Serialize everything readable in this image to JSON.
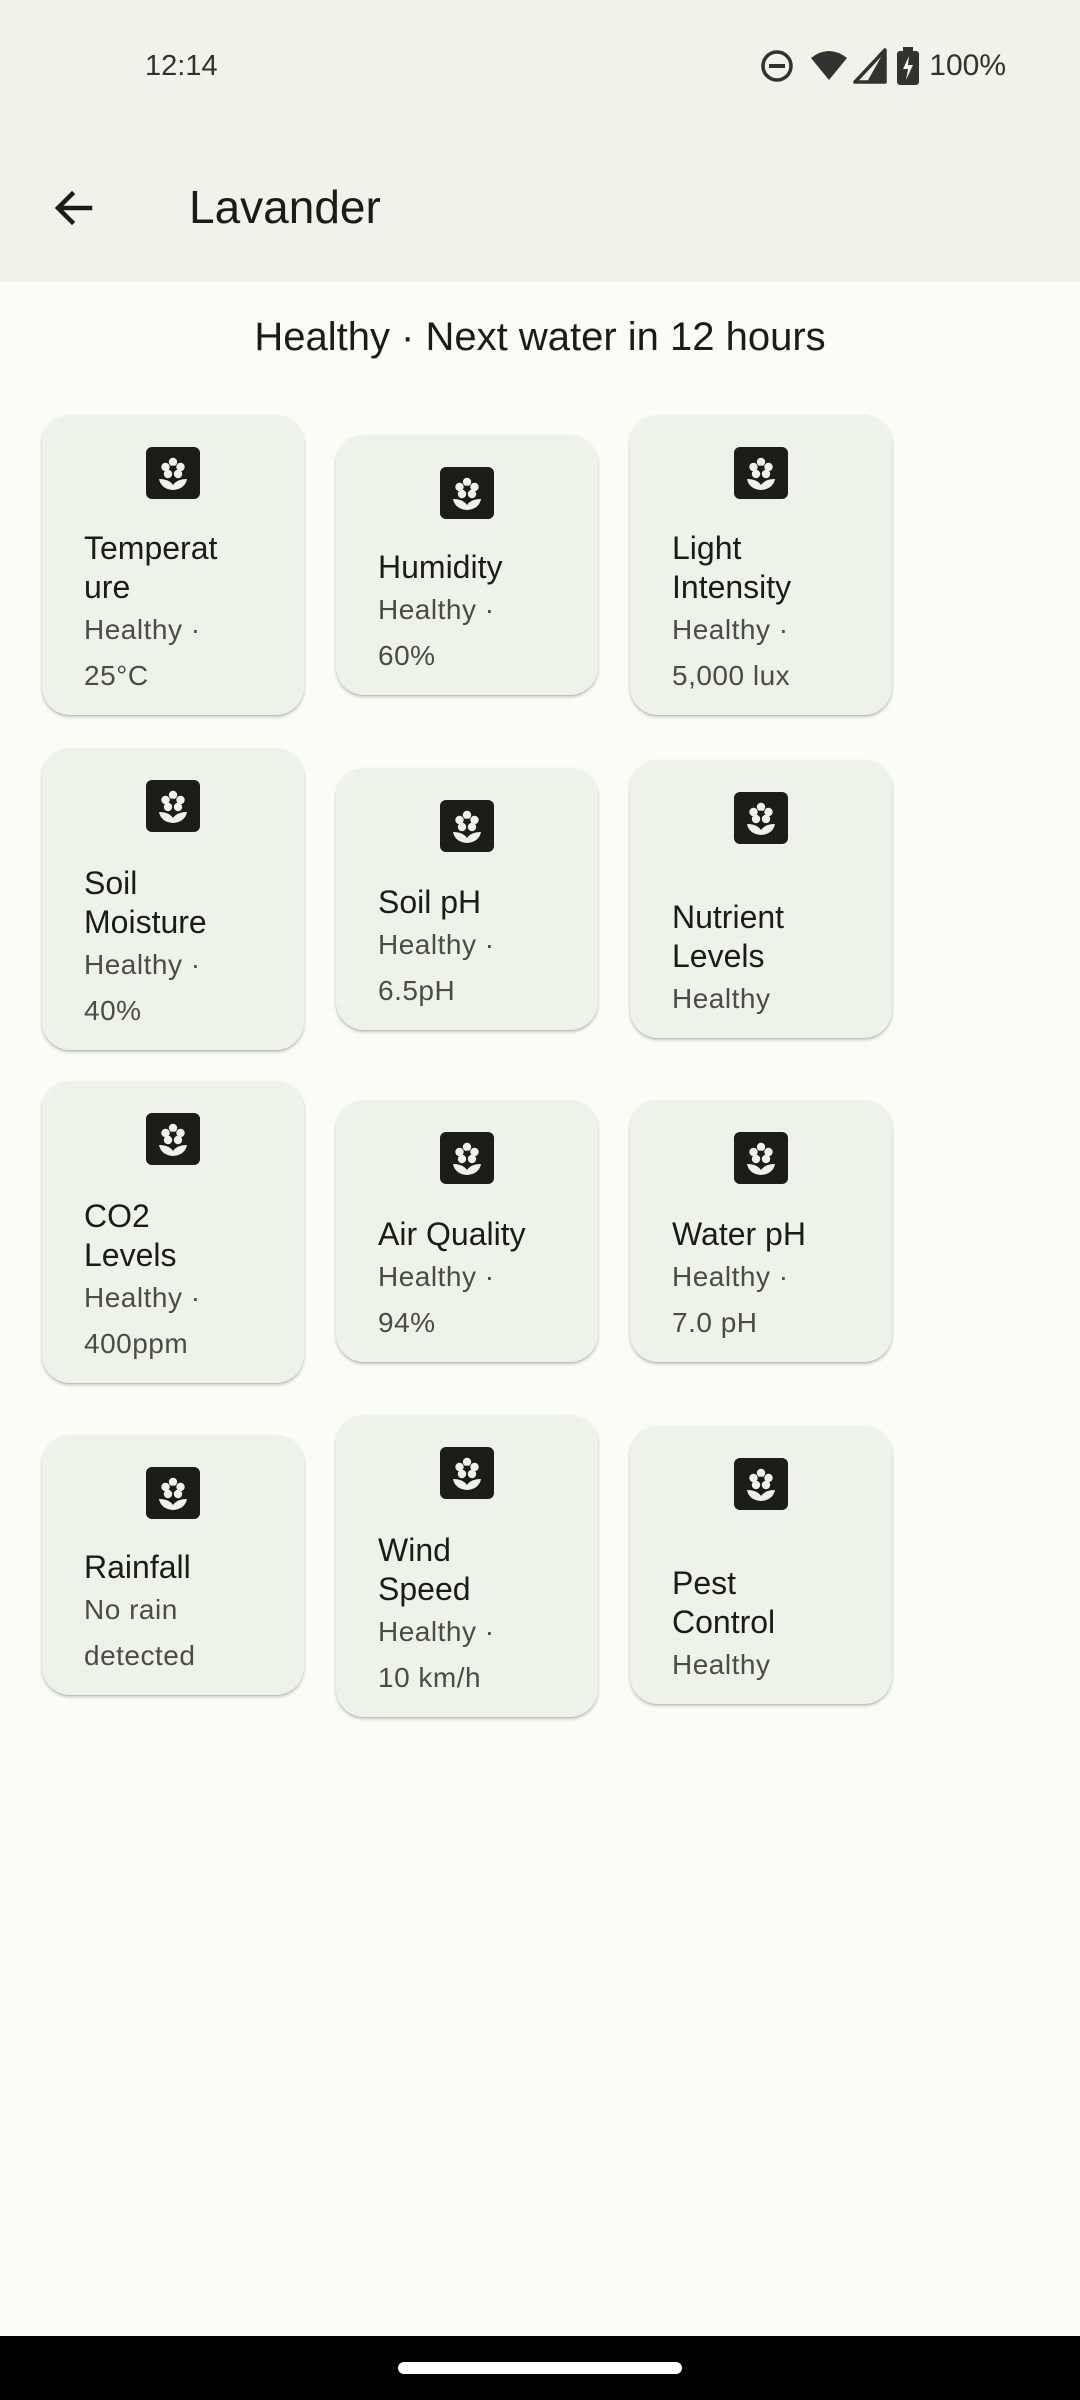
{
  "status_bar": {
    "time": "12:14",
    "battery": "100%",
    "icons": [
      "do-not-disturb-icon",
      "wifi-icon",
      "cellular-signal-icon",
      "battery-charging-icon"
    ]
  },
  "header": {
    "back_icon": "arrow-back-icon",
    "title": "Lavander"
  },
  "summary": "Healthy · Next water in 12 hours",
  "card_icon": "flower-icon",
  "colors": {
    "background": "#fbfcf6",
    "appbar": "#eff3ea",
    "card": "#eef3ea",
    "icon_tile": "#1c1c19"
  },
  "cards": [
    {
      "title": "Temperat\nure",
      "status": "Healthy ·\n25°C"
    },
    {
      "title": "Humidity",
      "status": "Healthy ·\n60%"
    },
    {
      "title": "Light\nIntensity",
      "status": "Healthy ·\n5,000 lux"
    },
    {
      "title": "Soil\nMoisture",
      "status": "Healthy ·\n40%"
    },
    {
      "title": "Soil pH",
      "status": "Healthy ·\n6.5pH"
    },
    {
      "title": "Nutrient\nLevels",
      "status": "Healthy"
    },
    {
      "title": "CO2\nLevels",
      "status": "Healthy ·\n400ppm"
    },
    {
      "title": "Air Quality",
      "status": "Healthy ·\n94%"
    },
    {
      "title": "Water pH",
      "status": "Healthy ·\n7.0 pH"
    },
    {
      "title": "Rainfall",
      "status": "No rain\ndetected"
    },
    {
      "title": "Wind\nSpeed",
      "status": "Healthy ·\n10 km/h"
    },
    {
      "title": "Pest\nControl",
      "status": "Healthy"
    }
  ]
}
